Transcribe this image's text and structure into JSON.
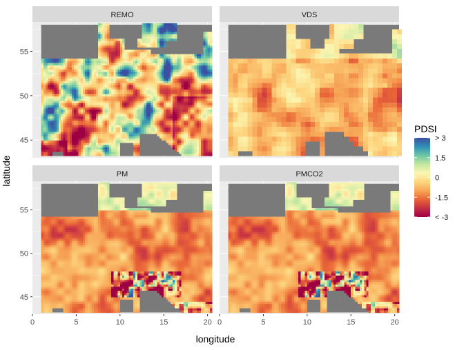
{
  "chart_data": {
    "type": "heatmap",
    "facets": [
      {
        "name": "REMO",
        "pattern": "mixed"
      },
      {
        "name": "VDS",
        "pattern": "dry"
      },
      {
        "name": "PM",
        "pattern": "drier"
      },
      {
        "name": "PMCO2",
        "pattern": "drier"
      }
    ],
    "xlabel": "longitude",
    "ylabel": "latitude",
    "xlim": [
      0,
      20.5
    ],
    "ylim": [
      43,
      58.3
    ],
    "x_ticks": [
      0,
      5,
      10,
      15,
      20
    ],
    "y_ticks": [
      45,
      50,
      55
    ],
    "data_extent": {
      "lon": [
        1,
        20.5
      ],
      "lat": [
        43.2,
        58
      ]
    },
    "legend": {
      "title": "PDSI",
      "position": "right",
      "range": [
        -3,
        3
      ],
      "labels": [
        "> 3",
        "1.5",
        "0",
        "-1.5",
        "< -3"
      ],
      "colors": [
        "#3e4ea0",
        "#2f8fb6",
        "#6dc6a5",
        "#c3e7a0",
        "#fbf6b3",
        "#fdd57f",
        "#f7a758",
        "#e96537",
        "#c42f45",
        "#9e0142"
      ]
    },
    "na_color": "#7a7a7a",
    "panel_bg": "#ebebeb",
    "grid": true
  }
}
